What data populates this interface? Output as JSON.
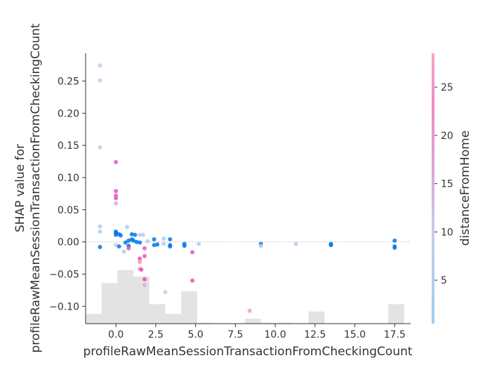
{
  "chart_data": {
    "type": "scatter",
    "title": "",
    "xlabel": "profileRawMeanSessionTransactionFromCheckingCount",
    "ylabel_line1": "SHAP value for",
    "ylabel_line2": "profileRawMeanSessionTransactionFromCheckingCount",
    "xlim": [
      -1.9,
      18.5
    ],
    "ylim": [
      -0.127,
      0.293
    ],
    "x_ticks": [
      0.0,
      2.5,
      5.0,
      7.5,
      10.0,
      12.5,
      15.0,
      17.5
    ],
    "x_tick_labels": [
      "0.0",
      "2.5",
      "5.0",
      "7.5",
      "10.0",
      "12.5",
      "15.0",
      "17.5"
    ],
    "y_ticks": [
      -0.1,
      -0.05,
      0.0,
      0.05,
      0.1,
      0.15,
      0.2,
      0.25
    ],
    "y_tick_labels": [
      "−0.10",
      "−0.05",
      "0.00",
      "0.05",
      "0.10",
      "0.15",
      "0.20",
      "0.25"
    ],
    "zero_line": true,
    "colorbar": {
      "label": "distanceFromHome",
      "min": 0.5,
      "max": 28.5,
      "ticks": [
        5,
        10,
        15,
        20,
        25
      ],
      "tick_labels": [
        "5",
        "10",
        "15",
        "20",
        "25"
      ],
      "colormap": [
        "#9ecfef",
        "#c9cbeb",
        "#dba6dd",
        "#f08ac4",
        "#f6a3c8"
      ]
    },
    "histogram": {
      "color": "#e3e3e3",
      "bin_edges": [
        -1.9,
        -0.9,
        0.1,
        1.1,
        2.1,
        3.1,
        4.1,
        5.1,
        6.1,
        7.1,
        8.1,
        9.1,
        10.1,
        11.1,
        12.1,
        13.1,
        14.1,
        15.1,
        16.1,
        17.1,
        18.1,
        19.1
      ],
      "relative_heights": [
        0.12,
        0.5,
        0.66,
        0.58,
        0.24,
        0.12,
        0.4,
        0.01,
        0.0,
        0.0,
        0.06,
        0.01,
        0.01,
        0.0,
        0.15,
        0.0,
        0.0,
        0.0,
        0.0,
        0.24,
        0.0
      ]
    },
    "points": [
      {
        "x": -1.0,
        "y": 0.274,
        "c": 7
      },
      {
        "x": -1.0,
        "y": 0.251,
        "c": 7
      },
      {
        "x": -1.0,
        "y": 0.147,
        "c": 6
      },
      {
        "x": -1.0,
        "y": 0.024,
        "c": 4
      },
      {
        "x": -1.0,
        "y": 0.016,
        "c": 3
      },
      {
        "x": -1.0,
        "y": -0.008,
        "c": 1
      },
      {
        "x": 0.0,
        "y": 0.124,
        "c": 15
      },
      {
        "x": 0.0,
        "y": 0.079,
        "c": 16
      },
      {
        "x": 0.0,
        "y": 0.072,
        "c": 17
      },
      {
        "x": 0.0,
        "y": 0.068,
        "c": 17
      },
      {
        "x": 0.0,
        "y": 0.06,
        "c": 14
      },
      {
        "x": 0.0,
        "y": 0.016,
        "c": 1
      },
      {
        "x": 0.0,
        "y": 0.014,
        "c": 1
      },
      {
        "x": 0.0,
        "y": 0.011,
        "c": 2
      },
      {
        "x": 0.2,
        "y": 0.012,
        "c": 1
      },
      {
        "x": 0.3,
        "y": 0.01,
        "c": 1
      },
      {
        "x": 0.0,
        "y": -0.005,
        "c": 8
      },
      {
        "x": 0.2,
        "y": -0.007,
        "c": 1
      },
      {
        "x": 0.5,
        "y": -0.015,
        "c": 4
      },
      {
        "x": 0.6,
        "y": -0.001,
        "c": 1
      },
      {
        "x": 0.7,
        "y": 0.023,
        "c": 3
      },
      {
        "x": 0.8,
        "y": 0.002,
        "c": 1
      },
      {
        "x": 0.8,
        "y": -0.006,
        "c": 1
      },
      {
        "x": 0.8,
        "y": -0.01,
        "c": 20
      },
      {
        "x": 1.0,
        "y": 0.012,
        "c": 1
      },
      {
        "x": 1.0,
        "y": 0.004,
        "c": 1
      },
      {
        "x": 1.1,
        "y": 0.002,
        "c": 1
      },
      {
        "x": 1.2,
        "y": 0.011,
        "c": 1
      },
      {
        "x": 1.3,
        "y": 0.0,
        "c": 1
      },
      {
        "x": 1.5,
        "y": 0.011,
        "c": 8
      },
      {
        "x": 1.5,
        "y": -0.001,
        "c": 1
      },
      {
        "x": 1.5,
        "y": -0.026,
        "c": 22
      },
      {
        "x": 1.5,
        "y": -0.031,
        "c": 24
      },
      {
        "x": 1.5,
        "y": -0.042,
        "c": 24
      },
      {
        "x": 1.6,
        "y": -0.043,
        "c": 20
      },
      {
        "x": 1.7,
        "y": 0.011,
        "c": 4
      },
      {
        "x": 1.8,
        "y": -0.01,
        "c": 15
      },
      {
        "x": 1.8,
        "y": -0.022,
        "c": 16
      },
      {
        "x": 1.8,
        "y": -0.058,
        "c": 21
      },
      {
        "x": 1.8,
        "y": -0.067,
        "c": 14
      },
      {
        "x": 2.0,
        "y": 0.001,
        "c": 4
      },
      {
        "x": 2.4,
        "y": 0.004,
        "c": 2
      },
      {
        "x": 2.4,
        "y": -0.005,
        "c": 1
      },
      {
        "x": 2.6,
        "y": -0.004,
        "c": 1
      },
      {
        "x": 3.0,
        "y": 0.005,
        "c": 3
      },
      {
        "x": 3.0,
        "y": -0.003,
        "c": 3
      },
      {
        "x": 3.1,
        "y": -0.078,
        "c": 6
      },
      {
        "x": 3.4,
        "y": 0.004,
        "c": 2
      },
      {
        "x": 3.4,
        "y": -0.005,
        "c": 1
      },
      {
        "x": 3.4,
        "y": -0.007,
        "c": 1
      },
      {
        "x": 4.3,
        "y": -0.003,
        "c": 1
      },
      {
        "x": 4.3,
        "y": -0.006,
        "c": 1
      },
      {
        "x": 4.8,
        "y": -0.016,
        "c": 17
      },
      {
        "x": 4.8,
        "y": -0.06,
        "c": 18
      },
      {
        "x": 5.2,
        "y": -0.003,
        "c": 3
      },
      {
        "x": 8.4,
        "y": -0.107,
        "c": 26
      },
      {
        "x": 9.1,
        "y": -0.003,
        "c": 1
      },
      {
        "x": 9.1,
        "y": -0.006,
        "c": 3
      },
      {
        "x": 11.3,
        "y": -0.003,
        "c": 3
      },
      {
        "x": 13.5,
        "y": -0.003,
        "c": 1
      },
      {
        "x": 13.5,
        "y": -0.005,
        "c": 1
      },
      {
        "x": 17.5,
        "y": 0.002,
        "c": 2
      },
      {
        "x": 17.5,
        "y": -0.007,
        "c": 1
      },
      {
        "x": 17.5,
        "y": -0.009,
        "c": 1
      }
    ]
  }
}
